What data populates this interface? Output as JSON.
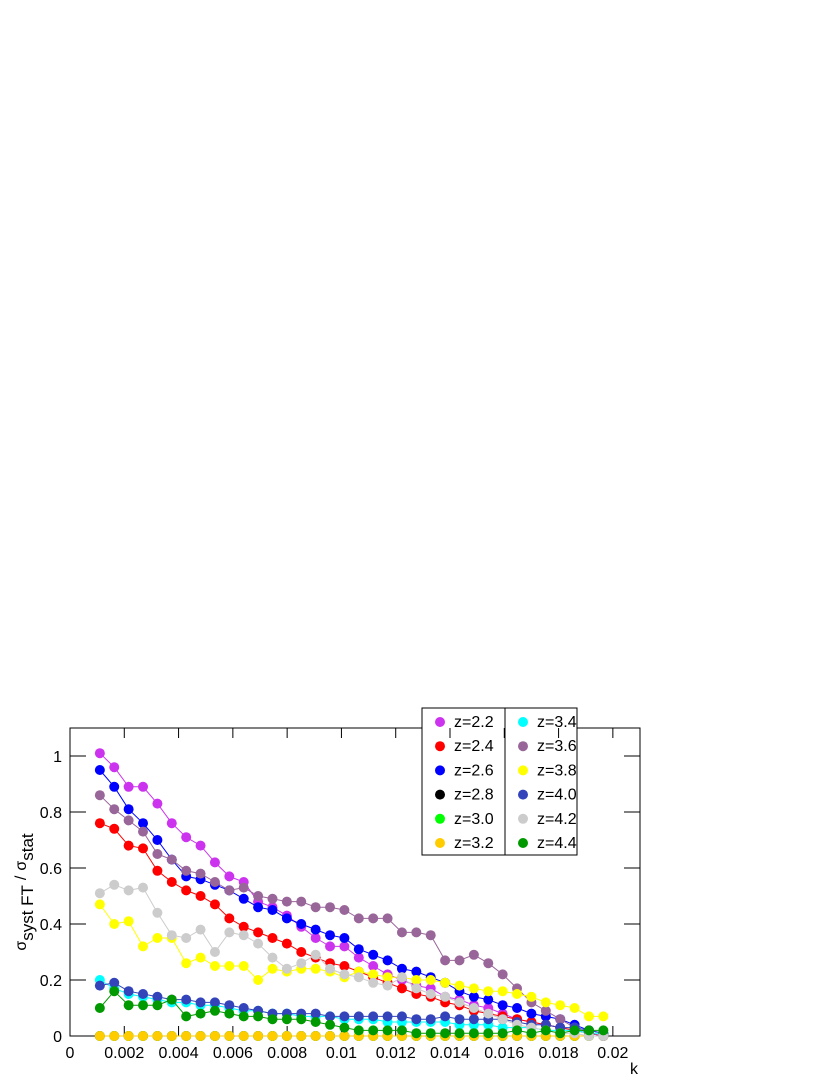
{
  "chart_data": {
    "type": "line",
    "x_label": "k",
    "y_label": {
      "main1": "σ",
      "sub1": "syst FT",
      "sep": "/",
      "main2": "σ",
      "sub2": "stat"
    },
    "xlim": [
      0,
      0.021
    ],
    "ylim": [
      0,
      1.1
    ],
    "xticks": [
      0,
      0.002,
      0.004,
      0.006,
      0.008,
      0.01,
      0.012,
      0.014,
      0.016,
      0.018,
      0.02
    ],
    "yticks": [
      0,
      0.2,
      0.4,
      0.6,
      0.8,
      1
    ],
    "x": [
      0.0011,
      0.00163,
      0.00216,
      0.00269,
      0.00322,
      0.00375,
      0.00428,
      0.00481,
      0.00534,
      0.00587,
      0.0064,
      0.00693,
      0.00746,
      0.00799,
      0.00852,
      0.00905,
      0.00958,
      0.01011,
      0.01064,
      0.01117,
      0.0117,
      0.01223,
      0.01276,
      0.01329,
      0.01382,
      0.01435,
      0.01488,
      0.01541,
      0.01594,
      0.01647,
      0.017,
      0.01753,
      0.01806,
      0.01859,
      0.01912,
      0.01965
    ],
    "series": [
      {
        "name": "z=2.2",
        "color": "#cc33ee",
        "values": [
          1.01,
          0.96,
          0.89,
          0.89,
          0.83,
          0.76,
          0.71,
          0.68,
          0.62,
          0.57,
          0.55,
          0.48,
          0.46,
          0.43,
          0.39,
          0.35,
          0.32,
          0.32,
          0.28,
          0.25,
          0.22,
          0.2,
          0.18,
          0.17,
          0.14,
          0.13,
          0.11,
          0.1,
          0.08,
          0.06,
          0.05,
          0.04,
          0.03,
          0.02,
          0.01,
          0
        ]
      },
      {
        "name": "z=2.4",
        "color": "#ff0000",
        "values": [
          0.76,
          0.74,
          0.68,
          0.67,
          0.59,
          0.55,
          0.52,
          0.5,
          0.47,
          0.42,
          0.39,
          0.37,
          0.35,
          0.33,
          0.3,
          0.28,
          0.26,
          0.25,
          0.23,
          0.21,
          0.19,
          0.17,
          0.15,
          0.14,
          0.12,
          0.11,
          0.09,
          0.08,
          0.07,
          0.06,
          0.05,
          0.04,
          0.03,
          0.02,
          0.01,
          0
        ]
      },
      {
        "name": "z=2.6",
        "color": "#0000ff",
        "values": [
          0.95,
          0.89,
          0.81,
          0.76,
          0.7,
          0.63,
          0.57,
          0.56,
          0.54,
          0.52,
          0.49,
          0.46,
          0.45,
          0.42,
          0.4,
          0.38,
          0.36,
          0.35,
          0.31,
          0.29,
          0.27,
          0.24,
          0.23,
          0.21,
          0.19,
          0.16,
          0.14,
          0.13,
          0.11,
          0.1,
          0.08,
          0.07,
          0.06,
          0.04,
          0.02,
          0.01
        ]
      },
      {
        "name": "z=2.8",
        "color": "#000000",
        "values": [
          0,
          0,
          0,
          0,
          0,
          0,
          0,
          0,
          0,
          0,
          0,
          0,
          0,
          0,
          0,
          0,
          0,
          0,
          0,
          0,
          0,
          0,
          0,
          0,
          0,
          0,
          0,
          0,
          0,
          0,
          0,
          0,
          0,
          0,
          0,
          0
        ]
      },
      {
        "name": "z=3.0",
        "color": "#00ff00",
        "values": [
          0,
          0,
          0,
          0,
          0,
          0,
          0,
          0,
          0,
          0,
          0,
          0,
          0,
          0,
          0,
          0,
          0,
          0,
          0,
          0,
          0,
          0,
          0,
          0,
          0,
          0,
          0,
          0,
          0,
          0,
          0,
          0,
          0,
          0,
          0,
          0
        ]
      },
      {
        "name": "z=3.2",
        "color": "#ffcc00",
        "values": [
          0,
          0,
          0,
          0,
          0,
          0,
          0,
          0,
          0,
          0,
          0,
          0,
          0,
          0,
          0,
          0,
          0,
          0,
          0,
          0,
          0,
          0,
          0,
          0,
          0,
          0,
          0,
          0,
          0,
          0,
          0,
          0,
          0,
          0,
          0,
          0
        ]
      },
      {
        "name": "z=3.4",
        "color": "#00ffff",
        "values": [
          0.2,
          0.17,
          0.15,
          0.14,
          0.13,
          0.12,
          0.12,
          0.11,
          0.11,
          0.1,
          0.09,
          0.09,
          0.08,
          0.08,
          0.07,
          0.07,
          0.07,
          0.06,
          0.06,
          0.06,
          0.05,
          0.05,
          0.05,
          0.05,
          0.05,
          0.04,
          0.04,
          0.04,
          0.03,
          0.03,
          0.03,
          0.02,
          0.02,
          0.02,
          0.01,
          0.01
        ]
      },
      {
        "name": "z=3.6",
        "color": "#996699",
        "values": [
          0.86,
          0.81,
          0.77,
          0.73,
          0.65,
          0.63,
          0.59,
          0.58,
          0.55,
          0.52,
          0.53,
          0.5,
          0.49,
          0.48,
          0.48,
          0.46,
          0.46,
          0.45,
          0.42,
          0.42,
          0.42,
          0.37,
          0.37,
          0.36,
          0.27,
          0.27,
          0.29,
          0.26,
          0.22,
          0.17,
          0.12,
          0.09,
          0.06,
          0.03,
          0.01,
          0
        ]
      },
      {
        "name": "z=3.8",
        "color": "#ffff00",
        "values": [
          0.47,
          0.4,
          0.41,
          0.32,
          0.35,
          0.35,
          0.26,
          0.28,
          0.25,
          0.25,
          0.25,
          0.2,
          0.24,
          0.23,
          0.24,
          0.24,
          0.23,
          0.21,
          0.23,
          0.22,
          0.21,
          0.21,
          0.2,
          0.2,
          0.19,
          0.18,
          0.17,
          0.16,
          0.16,
          0.15,
          0.14,
          0.12,
          0.11,
          0.1,
          0.07,
          0.07
        ]
      },
      {
        "name": "z=4.0",
        "color": "#3344bb",
        "values": [
          0.18,
          0.19,
          0.16,
          0.15,
          0.14,
          0.13,
          0.13,
          0.12,
          0.12,
          0.11,
          0.1,
          0.09,
          0.08,
          0.08,
          0.08,
          0.08,
          0.07,
          0.07,
          0.07,
          0.07,
          0.07,
          0.07,
          0.06,
          0.06,
          0.07,
          0.06,
          0.06,
          0.06,
          0.06,
          0.05,
          0.04,
          0.04,
          0.03,
          0.03,
          0.02,
          0.01
        ]
      },
      {
        "name": "z=4.2",
        "color": "#cccccc",
        "values": [
          0.51,
          0.54,
          0.52,
          0.53,
          0.44,
          0.36,
          0.35,
          0.38,
          0.3,
          0.37,
          0.36,
          0.33,
          0.28,
          0.24,
          0.26,
          0.29,
          0.24,
          0.22,
          0.21,
          0.19,
          0.18,
          0.21,
          0.17,
          0.15,
          0.14,
          0.12,
          0.1,
          0.08,
          0.06,
          0.04,
          0.03,
          0.02,
          0.01,
          0.01,
          0,
          0
        ]
      },
      {
        "name": "z=4.4",
        "color": "#009900",
        "values": [
          0.1,
          0.16,
          0.11,
          0.11,
          0.11,
          0.13,
          0.07,
          0.08,
          0.09,
          0.08,
          0.07,
          0.07,
          0.06,
          0.06,
          0.06,
          0.05,
          0.04,
          0.03,
          0.02,
          0.02,
          0.02,
          0.02,
          0.01,
          0.01,
          0.01,
          0.01,
          0.01,
          0.01,
          0.01,
          0.02,
          0.01,
          0.02,
          0.01,
          0.02,
          0.02,
          0.02
        ]
      }
    ]
  }
}
